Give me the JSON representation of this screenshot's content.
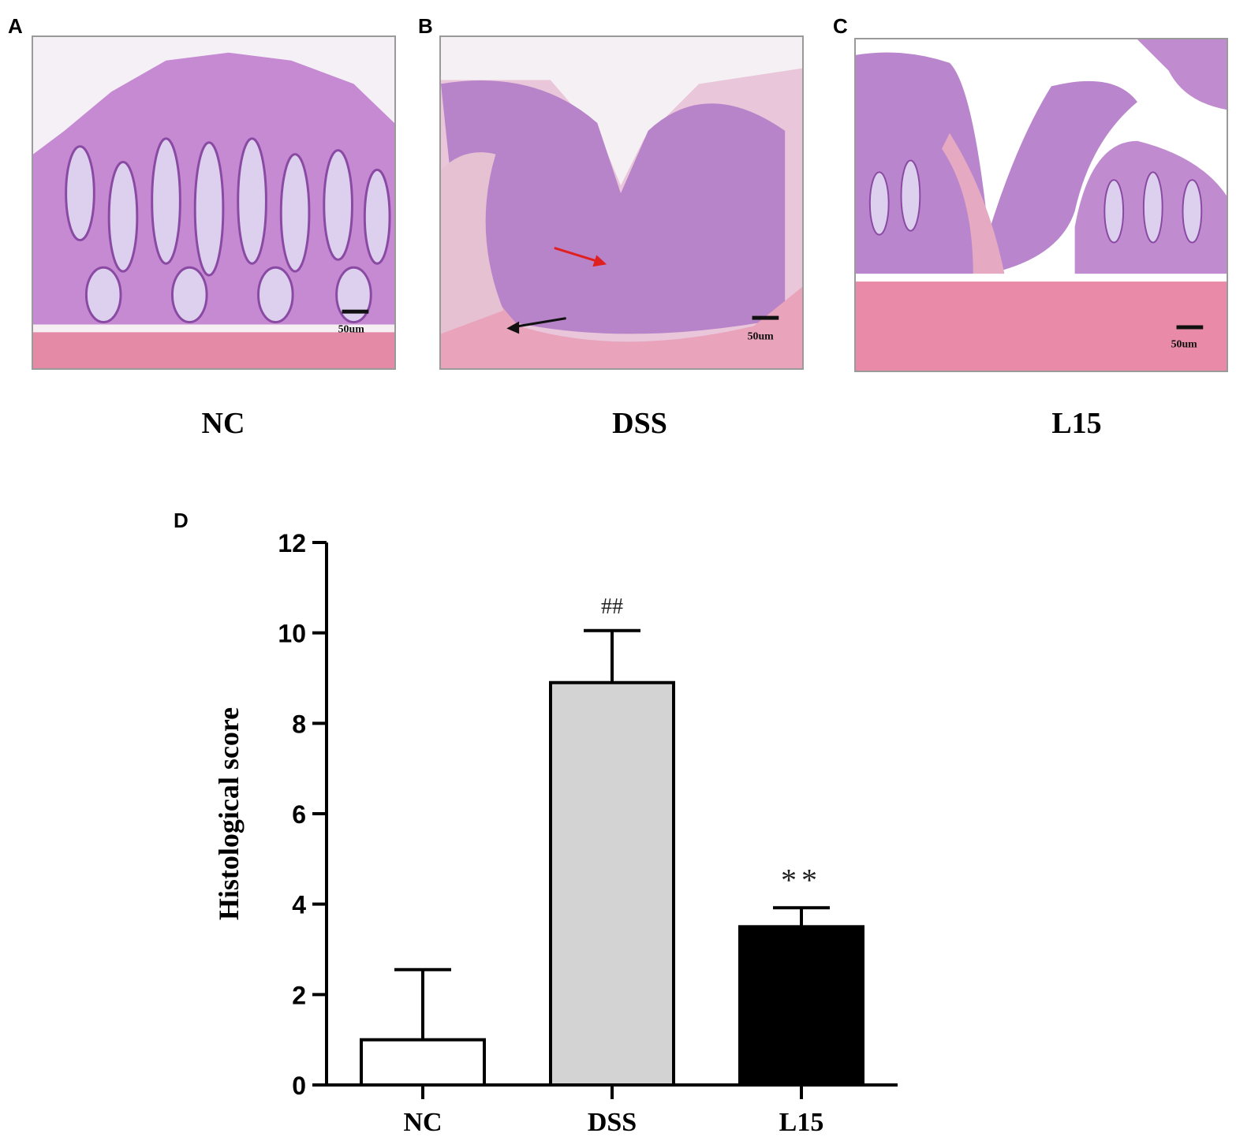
{
  "panels": [
    {
      "letter": "A",
      "group": "NC",
      "scale_bar": "50um"
    },
    {
      "letter": "B",
      "group": "DSS",
      "scale_bar": "50um"
    },
    {
      "letter": "C",
      "group": "L15",
      "scale_bar": "50um"
    }
  ],
  "chart_panel_letter": "D",
  "colors": {
    "tissue_purple": "#b27ac9",
    "tissue_pink": "#e7a3bd",
    "muscle_pink": "#e58aa6",
    "arrow_red": "#e02020",
    "arrow_black": "#111111",
    "bar_nc": "#ffffff",
    "bar_dss": "#d3d3d3",
    "bar_l15": "#000000"
  },
  "chart_data": {
    "type": "bar",
    "categories": [
      "NC",
      "DSS",
      "L15"
    ],
    "values": [
      1.0,
      8.9,
      3.5
    ],
    "errors": [
      1.55,
      1.15,
      0.42
    ],
    "annotations": [
      "",
      "##",
      "**"
    ],
    "ylabel": "Histological score",
    "ylim": [
      0,
      12
    ],
    "yticks": [
      0,
      2,
      4,
      6,
      8,
      10,
      12
    ]
  }
}
